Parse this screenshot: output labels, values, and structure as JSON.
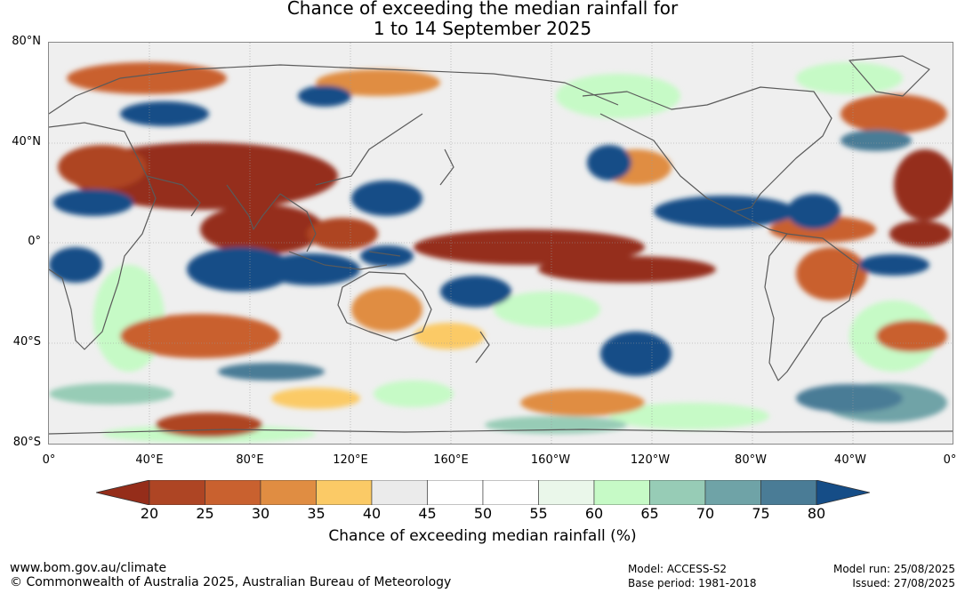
{
  "title": {
    "line1": "Chance of exceeding the median rainfall for",
    "line2": "1 to 14 September 2025"
  },
  "map": {
    "lat_labels": [
      "80°N",
      "40°N",
      "0°",
      "40°S",
      "80°S"
    ],
    "lon_labels": [
      "0°",
      "40°E",
      "80°E",
      "120°E",
      "160°E",
      "160°W",
      "120°W",
      "80°W",
      "40°W",
      "0°"
    ]
  },
  "legend": {
    "ticks": [
      "20",
      "25",
      "30",
      "35",
      "40",
      "45",
      "50",
      "55",
      "60",
      "65",
      "70",
      "75",
      "80"
    ],
    "colors": [
      "#952d1a",
      "#ae4524",
      "#c9612f",
      "#e08d42",
      "#fbca66",
      "#ebebeb",
      "#ffffff",
      "#ffffff",
      "#eaf7ea",
      "#c6fac6",
      "#97ccb6",
      "#6fa3a7",
      "#4a7c96",
      "#154d87"
    ],
    "label": "Chance of exceeding median rainfall (%)"
  },
  "footer": {
    "website": "www.bom.gov.au/climate",
    "copyright": "© Commonwealth of Australia 2025, Australian Bureau of Meteorology",
    "model": "Model: ACCESS-S2",
    "base_period": "Base period: 1981-2018",
    "model_run": "Model run: 25/08/2025",
    "issued": "Issued: 27/08/2025"
  }
}
